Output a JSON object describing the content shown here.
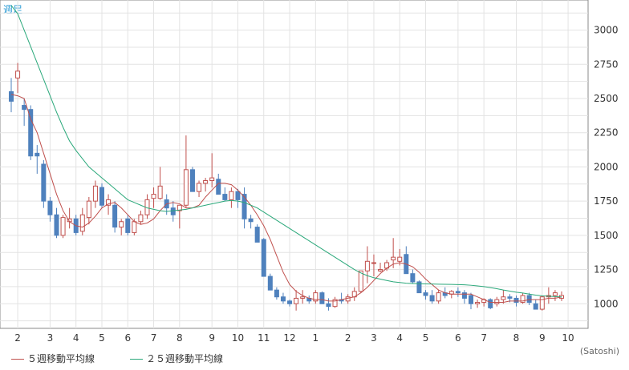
{
  "chart_data": {
    "type": "candlestick",
    "period_label": "週足",
    "unit_label": "(Satoshi)",
    "y_ticks": [
      1000,
      1250,
      1500,
      1750,
      2000,
      2250,
      2500,
      2750,
      3000
    ],
    "ylim": [
      820,
      3220
    ],
    "x_month_labels": [
      {
        "label": "2",
        "week": 1
      },
      {
        "label": "3",
        "week": 6
      },
      {
        "label": "4",
        "week": 10
      },
      {
        "label": "5",
        "week": 14
      },
      {
        "label": "6",
        "week": 18
      },
      {
        "label": "7",
        "week": 22
      },
      {
        "label": "8",
        "week": 26
      },
      {
        "label": "9",
        "week": 31
      },
      {
        "label": "10",
        "week": 35
      },
      {
        "label": "11",
        "week": 39
      },
      {
        "label": "12",
        "week": 43
      },
      {
        "label": "1",
        "week": 47
      },
      {
        "label": "2",
        "week": 52
      },
      {
        "label": "3",
        "week": 56
      },
      {
        "label": "4",
        "week": 60
      },
      {
        "label": "5",
        "week": 64
      },
      {
        "label": "6",
        "week": 69
      },
      {
        "label": "7",
        "week": 73
      },
      {
        "label": "8",
        "week": 78
      },
      {
        "label": "9",
        "week": 82
      },
      {
        "label": "10",
        "week": 86
      }
    ],
    "candles": [
      [
        2550,
        2650,
        2400,
        2480
      ],
      [
        2650,
        2760,
        2540,
        2700
      ],
      [
        2450,
        2500,
        2300,
        2420
      ],
      [
        2420,
        2450,
        2050,
        2080
      ],
      [
        2100,
        2160,
        1950,
        2080
      ],
      [
        2020,
        2050,
        1700,
        1750
      ],
      [
        1750,
        1780,
        1600,
        1650
      ],
      [
        1650,
        1700,
        1480,
        1500
      ],
      [
        1500,
        1650,
        1480,
        1630
      ],
      [
        1600,
        1700,
        1550,
        1620
      ],
      [
        1620,
        1650,
        1500,
        1520
      ],
      [
        1530,
        1700,
        1500,
        1650
      ],
      [
        1630,
        1780,
        1580,
        1750
      ],
      [
        1750,
        1900,
        1700,
        1860
      ],
      [
        1850,
        1880,
        1700,
        1720
      ],
      [
        1720,
        1800,
        1650,
        1760
      ],
      [
        1720,
        1750,
        1520,
        1560
      ],
      [
        1560,
        1620,
        1500,
        1600
      ],
      [
        1620,
        1650,
        1500,
        1520
      ],
      [
        1520,
        1620,
        1500,
        1600
      ],
      [
        1600,
        1680,
        1580,
        1650
      ],
      [
        1650,
        1800,
        1620,
        1760
      ],
      [
        1770,
        1850,
        1700,
        1800
      ],
      [
        1770,
        2000,
        1760,
        1860
      ],
      [
        1760,
        1800,
        1650,
        1700
      ],
      [
        1700,
        1750,
        1600,
        1650
      ],
      [
        1680,
        1700,
        1550,
        1720
      ],
      [
        1720,
        2230,
        1700,
        1980
      ],
      [
        1980,
        2000,
        1840,
        1820
      ],
      [
        1820,
        1900,
        1780,
        1880
      ],
      [
        1880,
        1920,
        1820,
        1900
      ],
      [
        1900,
        2100,
        1850,
        1920
      ],
      [
        1910,
        1950,
        1810,
        1800
      ],
      [
        1800,
        1850,
        1750,
        1760
      ],
      [
        1760,
        1850,
        1700,
        1820
      ],
      [
        1820,
        1840,
        1700,
        1760
      ],
      [
        1800,
        1850,
        1550,
        1620
      ],
      [
        1620,
        1650,
        1550,
        1600
      ],
      [
        1560,
        1580,
        1450,
        1450
      ],
      [
        1470,
        1480,
        1200,
        1200
      ],
      [
        1200,
        1220,
        1100,
        1100
      ],
      [
        1100,
        1120,
        1030,
        1050
      ],
      [
        1050,
        1080,
        1000,
        1020
      ],
      [
        1020,
        1030,
        980,
        1000
      ],
      [
        1000,
        1100,
        950,
        1040
      ],
      [
        1040,
        1100,
        1000,
        1050
      ],
      [
        1040,
        1060,
        1000,
        1020
      ],
      [
        1020,
        1100,
        1000,
        1080
      ],
      [
        1080,
        1090,
        1000,
        1000
      ],
      [
        1000,
        1040,
        950,
        980
      ],
      [
        980,
        1050,
        970,
        1030
      ],
      [
        1030,
        1080,
        1000,
        1020
      ],
      [
        1020,
        1070,
        1000,
        1050
      ],
      [
        1050,
        1120,
        1020,
        1090
      ],
      [
        1090,
        1240,
        1080,
        1240
      ],
      [
        1240,
        1420,
        1150,
        1310
      ],
      [
        1300,
        1360,
        1200,
        1300
      ],
      [
        1240,
        1300,
        1230,
        1250
      ],
      [
        1260,
        1320,
        1240,
        1300
      ],
      [
        1320,
        1480,
        1260,
        1340
      ],
      [
        1310,
        1400,
        1280,
        1340
      ],
      [
        1360,
        1420,
        1220,
        1220
      ],
      [
        1220,
        1250,
        1150,
        1160
      ],
      [
        1160,
        1170,
        1080,
        1080
      ],
      [
        1080,
        1100,
        1030,
        1060
      ],
      [
        1060,
        1100,
        1000,
        1020
      ],
      [
        1020,
        1100,
        1000,
        1080
      ],
      [
        1080,
        1120,
        1040,
        1060
      ],
      [
        1070,
        1100,
        1040,
        1090
      ],
      [
        1090,
        1120,
        1050,
        1080
      ],
      [
        1080,
        1100,
        1000,
        1040
      ],
      [
        1060,
        1080,
        960,
        1000
      ],
      [
        1000,
        1030,
        970,
        1010
      ],
      [
        1010,
        1040,
        980,
        1030
      ],
      [
        1030,
        1040,
        960,
        970
      ],
      [
        1000,
        1050,
        980,
        1030
      ],
      [
        1030,
        1100,
        1000,
        1050
      ],
      [
        1050,
        1070,
        1010,
        1040
      ],
      [
        1040,
        1060,
        980,
        1010
      ],
      [
        1010,
        1080,
        1000,
        1060
      ],
      [
        1060,
        1080,
        990,
        1010
      ],
      [
        1000,
        1030,
        960,
        960
      ],
      [
        960,
        1060,
        950,
        1050
      ],
      [
        1050,
        1120,
        1000,
        1060
      ],
      [
        1060,
        1100,
        1020,
        1080
      ],
      [
        1040,
        1090,
        1020,
        1060
      ]
    ],
    "series": [
      {
        "name": "５週移動平均線",
        "color": "#c0504d",
        "values": [
          2530,
          2520,
          2500,
          2350,
          2250,
          2100,
          1950,
          1800,
          1680,
          1600,
          1570,
          1560,
          1590,
          1640,
          1700,
          1730,
          1740,
          1700,
          1650,
          1600,
          1580,
          1590,
          1620,
          1680,
          1730,
          1740,
          1730,
          1700,
          1700,
          1720,
          1780,
          1830,
          1880,
          1880,
          1870,
          1830,
          1780,
          1720,
          1650,
          1570,
          1470,
          1350,
          1230,
          1140,
          1090,
          1060,
          1040,
          1030,
          1030,
          1020,
          1020,
          1030,
          1040,
          1050,
          1080,
          1120,
          1170,
          1220,
          1260,
          1290,
          1300,
          1290,
          1270,
          1230,
          1180,
          1140,
          1100,
          1080,
          1070,
          1070,
          1070,
          1070,
          1050,
          1030,
          1010,
          1010,
          1010,
          1020,
          1020,
          1020,
          1030,
          1030,
          1030,
          1040,
          1040,
          1050
        ]
      },
      {
        "name": "２５週移動平均線",
        "color": "#2aa87a",
        "values": [
          3180,
          3120,
          3000,
          2880,
          2760,
          2640,
          2520,
          2400,
          2290,
          2190,
          2120,
          2060,
          2000,
          1960,
          1920,
          1880,
          1840,
          1800,
          1760,
          1740,
          1720,
          1700,
          1690,
          1680,
          1675,
          1680,
          1685,
          1690,
          1700,
          1710,
          1720,
          1730,
          1740,
          1750,
          1755,
          1750,
          1740,
          1720,
          1700,
          1670,
          1640,
          1610,
          1580,
          1550,
          1520,
          1490,
          1460,
          1430,
          1400,
          1370,
          1340,
          1310,
          1280,
          1250,
          1225,
          1205,
          1190,
          1180,
          1170,
          1160,
          1155,
          1150,
          1148,
          1146,
          1145,
          1144,
          1143,
          1142,
          1141,
          1140,
          1138,
          1135,
          1130,
          1125,
          1118,
          1110,
          1100,
          1092,
          1084,
          1078,
          1070,
          1063,
          1058,
          1055,
          1052,
          1050
        ]
      }
    ],
    "colors": {
      "up": "#c0504d",
      "down": "#4f81bd",
      "grid": "#e3e3e3",
      "axis": "#888888"
    }
  }
}
